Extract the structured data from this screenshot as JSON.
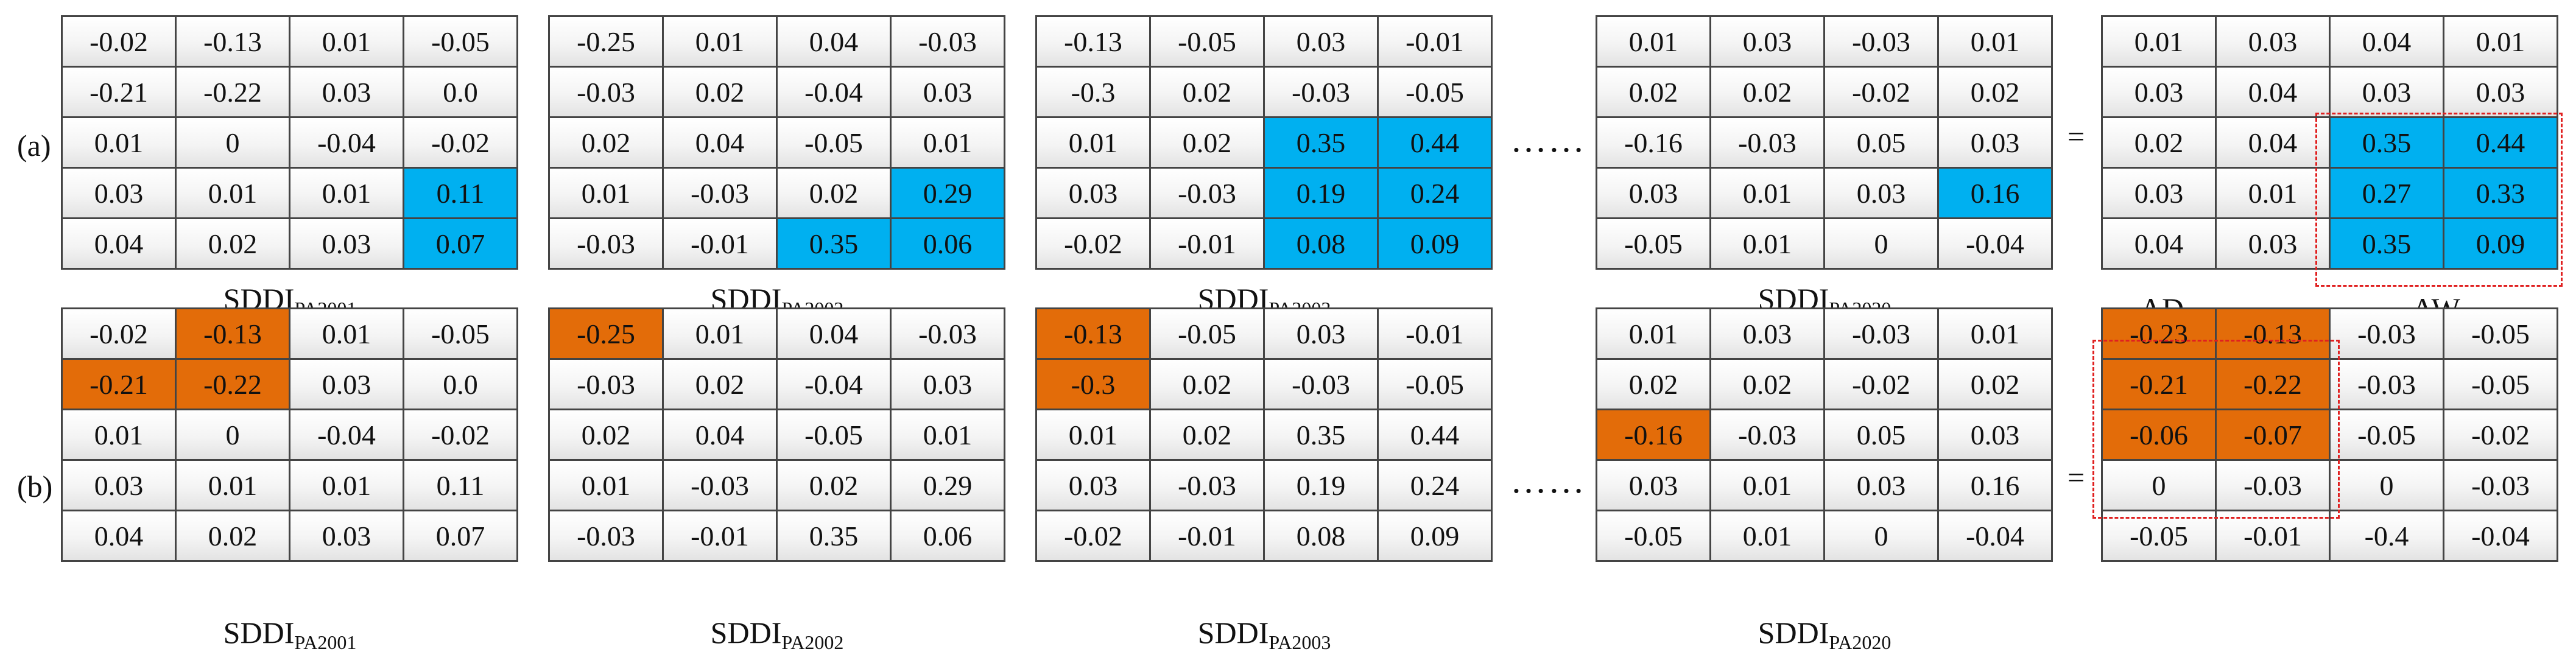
{
  "row_labels": [
    "(a)",
    "(b)"
  ],
  "ellipsis": "……",
  "equals": "=",
  "region_labels": {
    "aw": "AW",
    "ad": "AD"
  },
  "captions": {
    "pa2001": {
      "base": "SDDI",
      "sub": "PA2001"
    },
    "pa2002": {
      "base": "SDDI",
      "sub": "PA2002"
    },
    "pa2003": {
      "base": "SDDI",
      "sub": "PA2003"
    },
    "pa2020": {
      "base": "SDDI",
      "sub": "PA2020"
    }
  },
  "matrices": {
    "a_pa2001": [
      [
        "-0.02",
        "-0.13",
        "0.01",
        "-0.05"
      ],
      [
        "-0.21",
        "-0.22",
        "0.03",
        "0.0"
      ],
      [
        "0.01",
        "0",
        "-0.04",
        "-0.02"
      ],
      [
        "0.03",
        "0.01",
        "0.01",
        "0.11"
      ],
      [
        "0.04",
        "0.02",
        "0.03",
        "0.07"
      ]
    ],
    "a_pa2002": [
      [
        "-0.25",
        "0.01",
        "0.04",
        "-0.03"
      ],
      [
        "-0.03",
        "0.02",
        "-0.04",
        "0.03"
      ],
      [
        "0.02",
        "0.04",
        "-0.05",
        "0.01"
      ],
      [
        "0.01",
        "-0.03",
        "0.02",
        "0.29"
      ],
      [
        "-0.03",
        "-0.01",
        "0.35",
        "0.06"
      ]
    ],
    "a_pa2003": [
      [
        "-0.13",
        "-0.05",
        "0.03",
        "-0.01"
      ],
      [
        "-0.3",
        "0.02",
        "-0.03",
        "-0.05"
      ],
      [
        "0.01",
        "0.02",
        "0.35",
        "0.44"
      ],
      [
        "0.03",
        "-0.03",
        "0.19",
        "0.24"
      ],
      [
        "-0.02",
        "-0.01",
        "0.08",
        "0.09"
      ]
    ],
    "a_pa2020": [
      [
        "0.01",
        "0.03",
        "-0.03",
        "0.01"
      ],
      [
        "0.02",
        "0.02",
        "-0.02",
        "0.02"
      ],
      [
        "-0.16",
        "-0.03",
        "0.05",
        "0.03"
      ],
      [
        "0.03",
        "0.01",
        "0.03",
        "0.16"
      ],
      [
        "-0.05",
        "0.01",
        "0",
        "-0.04"
      ]
    ],
    "a_result": [
      [
        "0.01",
        "0.03",
        "0.04",
        "0.01"
      ],
      [
        "0.03",
        "0.04",
        "0.03",
        "0.03"
      ],
      [
        "0.02",
        "0.04",
        "0.35",
        "0.44"
      ],
      [
        "0.03",
        "0.01",
        "0.27",
        "0.33"
      ],
      [
        "0.04",
        "0.03",
        "0.35",
        "0.09"
      ]
    ],
    "b_pa2001": [
      [
        "-0.02",
        "-0.13",
        "0.01",
        "-0.05"
      ],
      [
        "-0.21",
        "-0.22",
        "0.03",
        "0.0"
      ],
      [
        "0.01",
        "0",
        "-0.04",
        "-0.02"
      ],
      [
        "0.03",
        "0.01",
        "0.01",
        "0.11"
      ],
      [
        "0.04",
        "0.02",
        "0.03",
        "0.07"
      ]
    ],
    "b_pa2002": [
      [
        "-0.25",
        "0.01",
        "0.04",
        "-0.03"
      ],
      [
        "-0.03",
        "0.02",
        "-0.04",
        "0.03"
      ],
      [
        "0.02",
        "0.04",
        "-0.05",
        "0.01"
      ],
      [
        "0.01",
        "-0.03",
        "0.02",
        "0.29"
      ],
      [
        "-0.03",
        "-0.01",
        "0.35",
        "0.06"
      ]
    ],
    "b_pa2003": [
      [
        "-0.13",
        "-0.05",
        "0.03",
        "-0.01"
      ],
      [
        "-0.3",
        "0.02",
        "-0.03",
        "-0.05"
      ],
      [
        "0.01",
        "0.02",
        "0.35",
        "0.44"
      ],
      [
        "0.03",
        "-0.03",
        "0.19",
        "0.24"
      ],
      [
        "-0.02",
        "-0.01",
        "0.08",
        "0.09"
      ]
    ],
    "b_pa2020": [
      [
        "0.01",
        "0.03",
        "-0.03",
        "0.01"
      ],
      [
        "0.02",
        "0.02",
        "-0.02",
        "0.02"
      ],
      [
        "-0.16",
        "-0.03",
        "0.05",
        "0.03"
      ],
      [
        "0.03",
        "0.01",
        "0.03",
        "0.16"
      ],
      [
        "-0.05",
        "0.01",
        "0",
        "-0.04"
      ]
    ],
    "b_result": [
      [
        "-0.23",
        "-0.13",
        "-0.03",
        "-0.05"
      ],
      [
        "-0.21",
        "-0.22",
        "-0.03",
        "-0.05"
      ],
      [
        "-0.06",
        "-0.07",
        "-0.05",
        "-0.02"
      ],
      [
        "0",
        "-0.03",
        "0",
        "-0.03"
      ],
      [
        "-0.05",
        "-0.01",
        "-0.4",
        "-0.04"
      ]
    ]
  },
  "highlights": {
    "a_pa2001": {
      "color": "blue",
      "cells": [
        [
          3,
          3
        ],
        [
          4,
          3
        ]
      ]
    },
    "a_pa2002": {
      "color": "blue",
      "cells": [
        [
          3,
          3
        ],
        [
          4,
          2
        ],
        [
          4,
          3
        ]
      ]
    },
    "a_pa2003": {
      "color": "blue",
      "cells": [
        [
          2,
          2
        ],
        [
          2,
          3
        ],
        [
          3,
          2
        ],
        [
          3,
          3
        ],
        [
          4,
          2
        ],
        [
          4,
          3
        ]
      ]
    },
    "a_pa2020": {
      "color": "blue",
      "cells": [
        [
          3,
          3
        ]
      ]
    },
    "a_result": {
      "color": "blue",
      "cells": [
        [
          2,
          2
        ],
        [
          2,
          3
        ],
        [
          3,
          2
        ],
        [
          3,
          3
        ],
        [
          4,
          2
        ],
        [
          4,
          3
        ]
      ]
    },
    "b_pa2001": {
      "color": "orange",
      "cells": [
        [
          0,
          1
        ],
        [
          1,
          0
        ],
        [
          1,
          1
        ]
      ]
    },
    "b_pa2002": {
      "color": "orange",
      "cells": [
        [
          0,
          0
        ]
      ]
    },
    "b_pa2003": {
      "color": "orange",
      "cells": [
        [
          0,
          0
        ],
        [
          1,
          0
        ]
      ]
    },
    "b_pa2020": {
      "color": "orange",
      "cells": [
        [
          2,
          0
        ]
      ]
    },
    "b_result": {
      "color": "orange",
      "cells": [
        [
          0,
          0
        ],
        [
          0,
          1
        ],
        [
          1,
          0
        ],
        [
          1,
          1
        ],
        [
          2,
          0
        ],
        [
          2,
          1
        ]
      ]
    }
  },
  "colors": {
    "blue": "#00b0f0",
    "orange": "#e36c09",
    "dashed_box": "#e02020"
  }
}
